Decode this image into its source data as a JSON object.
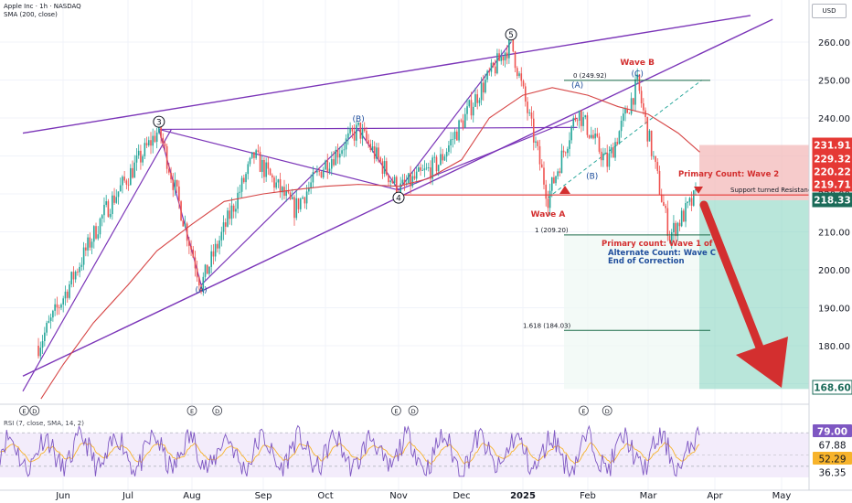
{
  "header": {
    "symbol_line": "Apple Inc · 1h · NASDAQ",
    "indicator_line": "SMA (200, close)",
    "rsi_line": "RSI (7, close, SMA, 14, 2)",
    "currency_button": "USD"
  },
  "colors": {
    "price_up": "#26a69a",
    "price_down": "#ef5350",
    "sma": "#d64545",
    "purple_lines": "#7b35b8",
    "trend_blue": "#2a56a8",
    "resistance": "#e53935",
    "target_arrow": "#d32f2f",
    "annotation_red": "#d32f2f",
    "annotation_blue": "#1f4e9c",
    "fib_line": "#1b6b49",
    "short_profit_zone": "#7fd1bc",
    "short_stop_zone": "#f3b9b9",
    "rsi_line": "#7e57c2",
    "rsi_sma": "#f7b32b"
  },
  "chart_data": {
    "type": "line",
    "title": "Apple Inc · 1h · NASDAQ",
    "series": [
      {
        "name": "SMA (200, close)",
        "x": [
          "2024-05-15",
          "2024-06-01",
          "2024-06-15",
          "2024-07-01",
          "2024-07-15",
          "2024-08-01",
          "2024-08-15",
          "2024-09-01",
          "2024-09-15",
          "2024-10-01",
          "2024-10-15",
          "2024-11-01",
          "2024-11-15",
          "2024-12-01",
          "2024-12-15",
          "2025-01-01",
          "2025-01-15",
          "2025-02-01",
          "2025-02-15",
          "2025-03-01",
          "2025-03-15",
          "2025-03-25"
        ],
        "values": [
          166,
          175,
          186,
          196,
          205,
          212,
          218,
          220,
          221,
          222,
          222.5,
          222,
          224,
          229,
          240,
          246,
          248,
          246,
          243,
          241,
          236,
          231
        ]
      }
    ],
    "price_path": {
      "x": [
        "2024-05-13",
        "2024-06-03",
        "2024-06-20",
        "2024-07-16",
        "2024-08-05",
        "2024-08-28",
        "2024-09-16",
        "2024-10-01",
        "2024-10-15",
        "2024-11-01",
        "2024-11-20",
        "2024-12-10",
        "2024-12-26",
        "2025-01-13",
        "2025-01-27",
        "2025-02-10",
        "2025-02-24",
        "2025-03-11",
        "2025-03-24"
      ],
      "values": [
        180,
        195,
        215,
        237,
        196,
        230,
        216,
        228,
        237,
        221,
        228,
        247,
        260,
        219,
        242,
        228,
        249,
        209,
        220
      ]
    },
    "y_axis": {
      "ticks": [
        170,
        180,
        190,
        200,
        210,
        220,
        230,
        240,
        250,
        260
      ],
      "range": [
        167,
        265
      ]
    },
    "x_axis": {
      "labels": [
        "Jun",
        "Jul",
        "Aug",
        "Sep",
        "Oct",
        "Nov",
        "Dec",
        "2025",
        "Feb",
        "Mar",
        "Apr",
        "May"
      ]
    },
    "price_labels": [
      {
        "value": 231.91,
        "kind": "stop"
      },
      {
        "value": 229.32,
        "kind": "stop"
      },
      {
        "value": 220.22,
        "kind": "stop"
      },
      {
        "value": 219.71,
        "kind": "current"
      },
      {
        "value": 218.33,
        "kind": "entry"
      },
      {
        "value": 168.6,
        "kind": "target"
      }
    ],
    "levels": [
      {
        "label": "Support turned Resistance",
        "value": 219.71
      },
      {
        "label": "0 (249.92)",
        "value": 249.92
      },
      {
        "label": "1 (209.20)",
        "value": 209.2
      },
      {
        "label": "1.618 (184.03)",
        "value": 184.03
      }
    ],
    "wave_labels": [
      {
        "text": "3",
        "x": "2024-07-16",
        "y": 239
      },
      {
        "text": "(A)",
        "x": "2024-08-05",
        "y": 194
      },
      {
        "text": "(B)",
        "x": "2024-10-15",
        "y": 239
      },
      {
        "text": "4",
        "x": "2024-11-01",
        "y": 219
      },
      {
        "text": "5",
        "x": "2024-12-26",
        "y": 262
      },
      {
        "text": "(A)",
        "x": "2025-01-27",
        "y": 248
      },
      {
        "text": "(B)",
        "x": "2025-02-03",
        "y": 224
      },
      {
        "text": "(C)",
        "x": "2025-02-24",
        "y": 251
      },
      {
        "text": "Wave B",
        "x": "2025-02-24",
        "y": 254
      },
      {
        "text": "Wave A",
        "x": "2025-01-13",
        "y": 214
      }
    ],
    "annotations": [
      "Primary Count: Wave 2",
      "Primary count: Wave 1 of C",
      "Alternate Count: Wave C",
      "End of Correction"
    ],
    "rsi": {
      "title": "RSI (7, close, SMA, 14, 2)",
      "range": [
        30,
        85
      ],
      "labels": [
        79.0,
        67.88,
        52.29,
        36.35
      ]
    }
  }
}
